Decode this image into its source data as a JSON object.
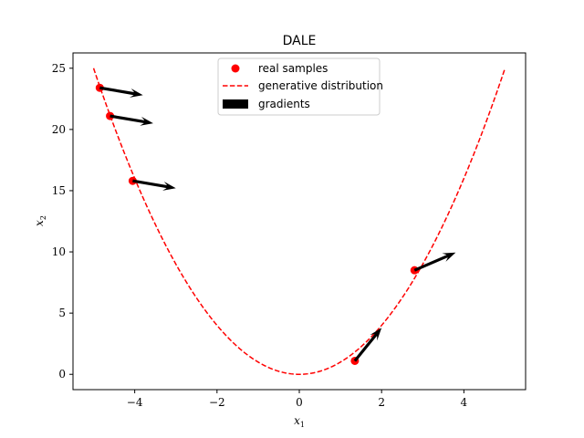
{
  "chart_data": {
    "type": "scatter",
    "title": "DALE",
    "xlabel": {
      "main": "x",
      "sub": "1"
    },
    "ylabel": {
      "main": "x",
      "sub": "2"
    },
    "xlim": [
      -5.5,
      5.5
    ],
    "ylim": [
      -1.25,
      26.25
    ],
    "xticks": [
      -4,
      -2,
      0,
      2,
      4
    ],
    "xtick_labels": [
      "−4",
      "−2",
      "0",
      "2",
      "4"
    ],
    "yticks": [
      0,
      5,
      10,
      15,
      20,
      25
    ],
    "ytick_labels": [
      "0",
      "5",
      "10",
      "15",
      "20",
      "25"
    ],
    "grid": false,
    "legend_position": "upper center",
    "legend": [
      {
        "label": "real samples",
        "style": "marker",
        "color": "#ff0000"
      },
      {
        "label": "generative distribution",
        "style": "dashed-line",
        "color": "#ff0000"
      },
      {
        "label": "gradients",
        "style": "arrow-patch",
        "color": "#000000"
      }
    ],
    "curve": {
      "function": "x^2",
      "x_range": [
        -5,
        5
      ],
      "color": "#ff0000",
      "style": "dashed"
    },
    "samples": [
      {
        "x": -4.85,
        "y": 23.4
      },
      {
        "x": -4.6,
        "y": 21.1
      },
      {
        "x": -4.05,
        "y": 15.8
      },
      {
        "x": 1.35,
        "y": 1.1
      },
      {
        "x": 2.8,
        "y": 8.5
      }
    ],
    "gradients": [
      {
        "x": -4.85,
        "y": 23.4,
        "u": 1.05,
        "v": -0.6
      },
      {
        "x": -4.6,
        "y": 21.1,
        "u": 1.05,
        "v": -0.6
      },
      {
        "x": -4.05,
        "y": 15.8,
        "u": 1.05,
        "v": -0.6
      },
      {
        "x": 1.35,
        "y": 1.1,
        "u": 0.65,
        "v": 2.7
      },
      {
        "x": 2.8,
        "y": 8.5,
        "u": 1.0,
        "v": 1.45
      }
    ]
  }
}
